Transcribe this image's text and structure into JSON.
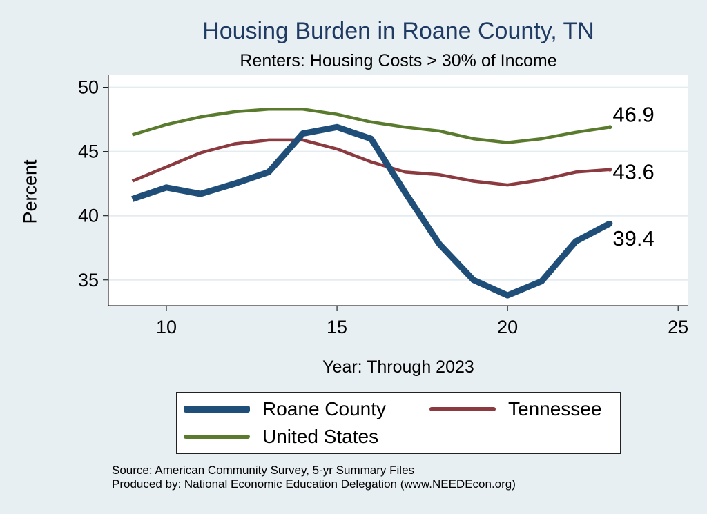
{
  "chart_data": {
    "type": "line",
    "title": "Housing Burden in Roane County, TN",
    "subtitle": "Renters: Housing Costs > 30% of Income",
    "xlabel": "Year: Through 2023",
    "ylabel": "Percent",
    "xlim": [
      8.3,
      25.3
    ],
    "ylim": [
      33.0,
      51.0
    ],
    "xticks": [
      10,
      15,
      20,
      25
    ],
    "yticks": [
      35,
      40,
      45,
      50
    ],
    "grid": true,
    "legend_position": "bottom",
    "series": [
      {
        "name": "Roane County",
        "color": "#1f4e79",
        "x": [
          9,
          10,
          11,
          12,
          13,
          14,
          15,
          16,
          17,
          18,
          19,
          20,
          21,
          22,
          23
        ],
        "y": [
          41.3,
          42.2,
          41.7,
          42.5,
          43.4,
          46.4,
          46.9,
          46.0,
          41.8,
          37.8,
          35.0,
          33.8,
          34.9,
          38.0,
          39.4
        ],
        "end_label": "39.4"
      },
      {
        "name": "Tennessee",
        "color": "#8b3a3f",
        "x": [
          9,
          10,
          11,
          12,
          13,
          14,
          15,
          16,
          17,
          18,
          19,
          20,
          21,
          22,
          23
        ],
        "y": [
          42.7,
          43.8,
          44.9,
          45.6,
          45.9,
          45.9,
          45.2,
          44.2,
          43.4,
          43.2,
          42.7,
          42.4,
          42.8,
          43.4,
          43.6
        ],
        "end_label": "43.6"
      },
      {
        "name": "United States",
        "color": "#5a7a2e",
        "x": [
          9,
          10,
          11,
          12,
          13,
          14,
          15,
          16,
          17,
          18,
          19,
          20,
          21,
          22,
          23
        ],
        "y": [
          46.3,
          47.1,
          47.7,
          48.1,
          48.3,
          48.3,
          47.9,
          47.3,
          46.9,
          46.6,
          46.0,
          45.7,
          46.0,
          46.5,
          46.9
        ],
        "end_label": "46.9"
      }
    ]
  },
  "legend": {
    "roane": "Roane County",
    "tennessee": "Tennessee",
    "us": "United States"
  },
  "source": {
    "line1": "Source: American Community Survey, 5-yr Summary Files",
    "line2": "Produced by: National Economic Education Delegation (www.NEEDEcon.org)"
  },
  "colors": {
    "background": "#e8eff2",
    "plot_background": "#ffffff",
    "gridline": "#e3ecf0",
    "title": "#1f3a63"
  }
}
